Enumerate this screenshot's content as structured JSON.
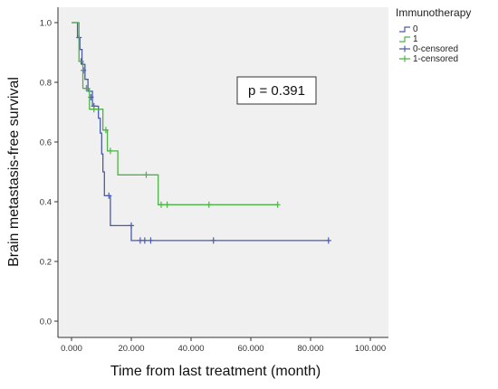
{
  "chart_data": {
    "type": "line",
    "subtype": "kaplan-meier",
    "xlabel": "Time from last treatment (month)",
    "ylabel": "Brain metastasis-free survival",
    "xlim": [
      0,
      100
    ],
    "ylim": [
      0,
      1
    ],
    "xticks": [
      0,
      20,
      40,
      60,
      80,
      100
    ],
    "xtick_labels": [
      "0.000",
      "20.000",
      "40.000",
      "60.000",
      "80.000",
      "100.000"
    ],
    "yticks": [
      0,
      0.2,
      0.4,
      0.6,
      0.8,
      1.0
    ],
    "ytick_labels": [
      "0.0",
      "0.2",
      "0.4",
      "0.6",
      "0.8",
      "1.0"
    ],
    "grid": false,
    "plot_background": "#f0f0f0",
    "legend": {
      "title": "Immunotherapy",
      "placement": "right",
      "entries": [
        {
          "label": "0",
          "marker": "step",
          "color": "#4a5bab"
        },
        {
          "label": "1",
          "marker": "step",
          "color": "#4db346"
        },
        {
          "label": "0-censored",
          "marker": "plus",
          "color": "#4a5bab"
        },
        {
          "label": "1-censored",
          "marker": "plus",
          "color": "#4db346"
        }
      ]
    },
    "annotation": "p = 0.391",
    "series": [
      {
        "name": "0",
        "color": "#4a5bab",
        "steps": [
          [
            0,
            1.0
          ],
          [
            2,
            0.95
          ],
          [
            2.8,
            0.91
          ],
          [
            3.5,
            0.86
          ],
          [
            4.5,
            0.81
          ],
          [
            5.5,
            0.77
          ],
          [
            7,
            0.72
          ],
          [
            9,
            0.68
          ],
          [
            9.6,
            0.63
          ],
          [
            10.1,
            0.56
          ],
          [
            10.5,
            0.5
          ],
          [
            11,
            0.42
          ],
          [
            13,
            0.32
          ],
          [
            20,
            0.27
          ],
          [
            86,
            0.27
          ]
        ],
        "censored": [
          [
            2.5,
            0.95
          ],
          [
            3.2,
            0.87
          ],
          [
            4,
            0.84
          ],
          [
            5,
            0.78
          ],
          [
            6.5,
            0.75
          ],
          [
            7.5,
            0.72
          ],
          [
            12.5,
            0.42
          ],
          [
            20,
            0.32
          ],
          [
            23,
            0.27
          ],
          [
            24.5,
            0.27
          ],
          [
            26.5,
            0.27
          ],
          [
            47.5,
            0.27
          ],
          [
            86,
            0.27
          ]
        ]
      },
      {
        "name": "1",
        "color": "#4db346",
        "steps": [
          [
            0,
            1.0
          ],
          [
            2.5,
            0.87
          ],
          [
            3.8,
            0.78
          ],
          [
            6,
            0.71
          ],
          [
            10.5,
            0.64
          ],
          [
            12,
            0.57
          ],
          [
            15.5,
            0.49
          ],
          [
            29,
            0.39
          ],
          [
            69,
            0.39
          ]
        ],
        "censored": [
          [
            5,
            0.78
          ],
          [
            7.5,
            0.71
          ],
          [
            11.5,
            0.64
          ],
          [
            13,
            0.57
          ],
          [
            25,
            0.49
          ],
          [
            30,
            0.39
          ],
          [
            32,
            0.39
          ],
          [
            46,
            0.39
          ],
          [
            69,
            0.39
          ]
        ]
      }
    ]
  }
}
